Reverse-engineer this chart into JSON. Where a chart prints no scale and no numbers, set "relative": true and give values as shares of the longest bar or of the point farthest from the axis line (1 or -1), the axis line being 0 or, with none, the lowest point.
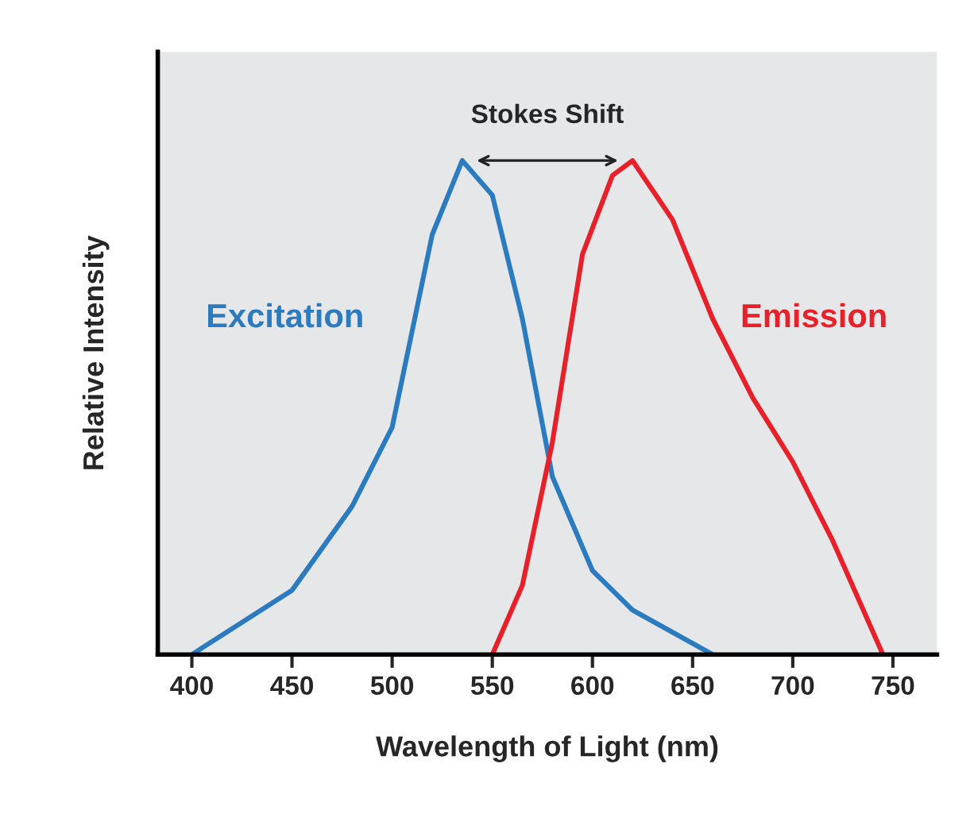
{
  "chart_data": {
    "type": "line",
    "xlabel": "Wavelength of Light (nm)",
    "ylabel": "Relative Intensity",
    "relative": true,
    "xlim": [
      383,
      772
    ],
    "xticks": [
      400,
      450,
      500,
      550,
      600,
      650,
      700,
      750
    ],
    "grid": false,
    "legend": false,
    "marker": "none",
    "line_style": "solid",
    "annotations": [
      "Stokes Shift"
    ],
    "series": [
      {
        "name": "Excitation",
        "color": "#2b7bc0",
        "x": [
          400,
          450,
          480,
          500,
          520,
          535,
          550,
          565,
          580,
          600,
          620,
          660
        ],
        "values": [
          0,
          0.13,
          0.3,
          0.46,
          0.85,
          1.0,
          0.93,
          0.68,
          0.36,
          0.17,
          0.09,
          0
        ]
      },
      {
        "name": "Emission",
        "color": "#e8202a",
        "x": [
          550,
          565,
          580,
          595,
          610,
          620,
          640,
          660,
          680,
          700,
          720,
          745
        ],
        "values": [
          0,
          0.14,
          0.43,
          0.81,
          0.97,
          1.0,
          0.88,
          0.68,
          0.52,
          0.39,
          0.23,
          0
        ]
      }
    ]
  }
}
